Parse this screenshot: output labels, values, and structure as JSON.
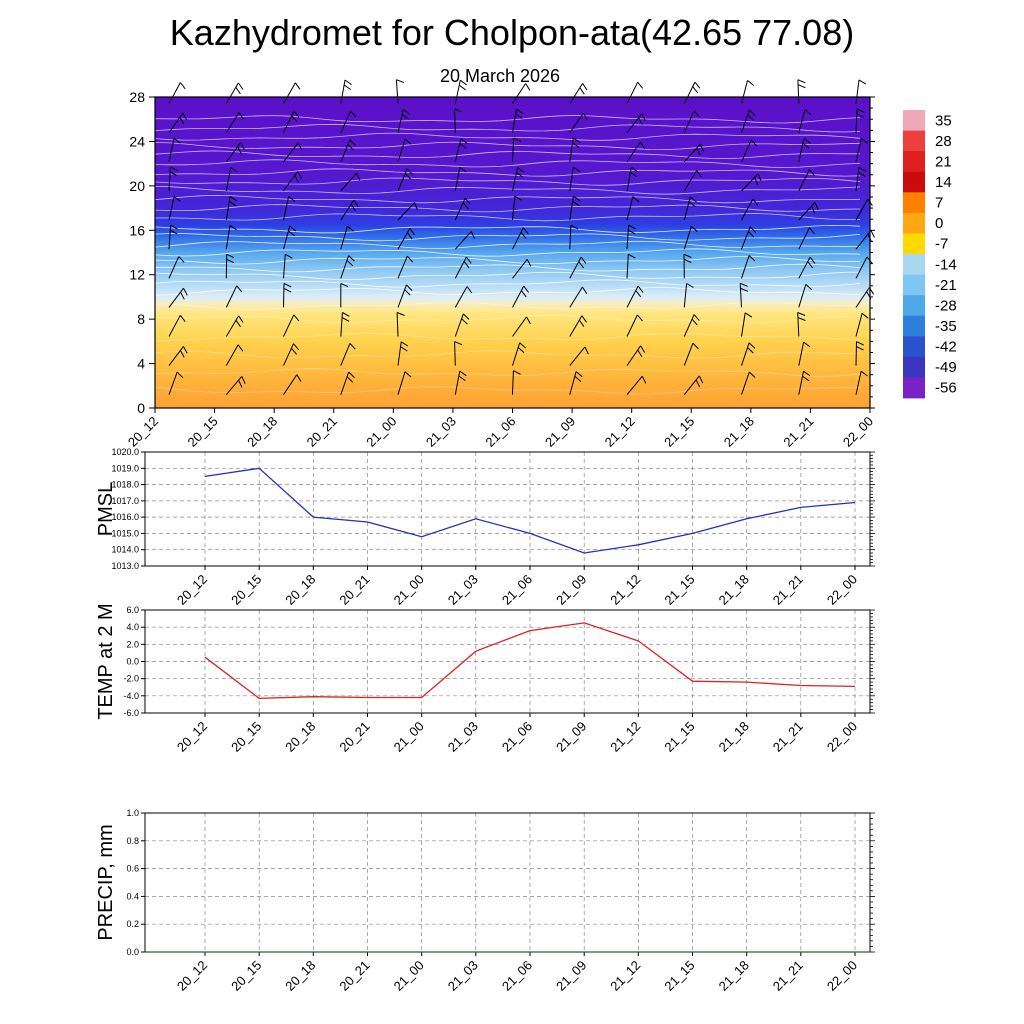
{
  "title": "Kazhydromet for Cholpon-ata(42.65 77.08)",
  "subtitle": "20 March 2026",
  "x_labels": [
    "20_12",
    "20_15",
    "20_18",
    "20_21",
    "21_00",
    "21_03",
    "21_06",
    "21_09",
    "21_12",
    "21_15",
    "21_18",
    "21_21",
    "22_00"
  ],
  "chart_data": [
    {
      "type": "heatmap",
      "name": "cross-section",
      "description": "time-height temperature cross-section with wind barbs and contour lines",
      "categories": [
        "20_12",
        "20_15",
        "20_18",
        "20_21",
        "21_00",
        "21_03",
        "21_06",
        "21_09",
        "21_12",
        "21_15",
        "21_18",
        "21_21",
        "22_00"
      ],
      "ylim": [
        0,
        28
      ],
      "yticks": [
        0,
        4,
        8,
        12,
        16,
        20,
        24,
        28
      ],
      "colorbar": {
        "labels": [
          "35",
          "28",
          "21",
          "14",
          "7",
          "0",
          "-7",
          "-14",
          "-21",
          "-28",
          "-35",
          "-42",
          "-49",
          "-56"
        ],
        "colors": [
          "#f0a8b8",
          "#ee3f3f",
          "#e02020",
          "#cc0a0a",
          "#ff7f00",
          "#ffa613",
          "#ffd900",
          "#a9d7f2",
          "#7ec7f0",
          "#4fa9e9",
          "#2f7fdc",
          "#2a52cd",
          "#3a36c0",
          "#7a22c8"
        ]
      },
      "gradient_stops": [
        {
          "h": 28,
          "color": "#5b10c8"
        },
        {
          "h": 21,
          "color": "#5518cf"
        },
        {
          "h": 18,
          "color": "#4326d8"
        },
        {
          "h": 16.5,
          "color": "#2b3fe2"
        },
        {
          "h": 15.5,
          "color": "#2f6ae8"
        },
        {
          "h": 14,
          "color": "#55a6ee"
        },
        {
          "h": 12.5,
          "color": "#8cc6f2"
        },
        {
          "h": 11,
          "color": "#b8dcf6"
        },
        {
          "h": 10,
          "color": "#dcedf8"
        },
        {
          "h": 9.4,
          "color": "#f7edc0"
        },
        {
          "h": 8.5,
          "color": "#ffe680"
        },
        {
          "h": 6,
          "color": "#ffd24d"
        },
        {
          "h": 3,
          "color": "#ffb83d"
        },
        {
          "h": 0,
          "color": "#ffa033"
        }
      ]
    },
    {
      "type": "line",
      "name": "pmsl",
      "ylabel": "PMSL",
      "color": "#2233bb",
      "ylim": [
        1013,
        1020
      ],
      "ytick_labels": [
        "1020.0",
        "1019.0",
        "1018.0",
        "1017.0",
        "1016.0",
        "1015.0",
        "1014.0",
        "1013.0"
      ],
      "categories": [
        "20_12",
        "20_15",
        "20_18",
        "20_21",
        "21_00",
        "21_03",
        "21_06",
        "21_09",
        "21_12",
        "21_15",
        "21_18",
        "21_21",
        "22_00"
      ],
      "values": [
        1018.5,
        1019.0,
        1016.0,
        1015.7,
        1014.8,
        1015.9,
        1015.0,
        1013.8,
        1014.3,
        1015.0,
        1015.9,
        1016.6,
        1016.9
      ]
    },
    {
      "type": "line",
      "name": "temp-at-2m",
      "ylabel": "TEMP at 2 M",
      "color": "#dd2222",
      "ylim": [
        -6,
        6
      ],
      "ytick_labels": [
        "6.0",
        "4.0",
        "2.0",
        "0.0",
        "-2.0",
        "-4.0",
        "-6.0"
      ],
      "categories": [
        "20_12",
        "20_15",
        "20_18",
        "20_21",
        "21_00",
        "21_03",
        "21_06",
        "21_09",
        "21_12",
        "21_15",
        "21_18",
        "21_21",
        "22_00"
      ],
      "values": [
        0.5,
        -4.3,
        -4.1,
        -4.2,
        -4.2,
        1.2,
        3.6,
        4.5,
        2.4,
        -2.3,
        -2.4,
        -2.8,
        -2.9
      ]
    },
    {
      "type": "line",
      "name": "precip",
      "ylabel": "PRECIP, mm",
      "color": "#1a6b1a",
      "ylim": [
        0,
        1
      ],
      "ytick_labels": [
        "1.0",
        "0.8",
        "0.6",
        "0.4",
        "0.2",
        "0.0"
      ],
      "categories": [
        "20_12",
        "20_15",
        "20_18",
        "20_21",
        "21_00",
        "21_03",
        "21_06",
        "21_09",
        "21_12",
        "21_15",
        "21_18",
        "21_21",
        "22_00"
      ],
      "values": [
        0,
        0,
        0,
        0,
        0,
        0,
        0,
        0,
        0,
        0,
        0,
        0,
        0
      ],
      "extend_full_width": true
    }
  ]
}
